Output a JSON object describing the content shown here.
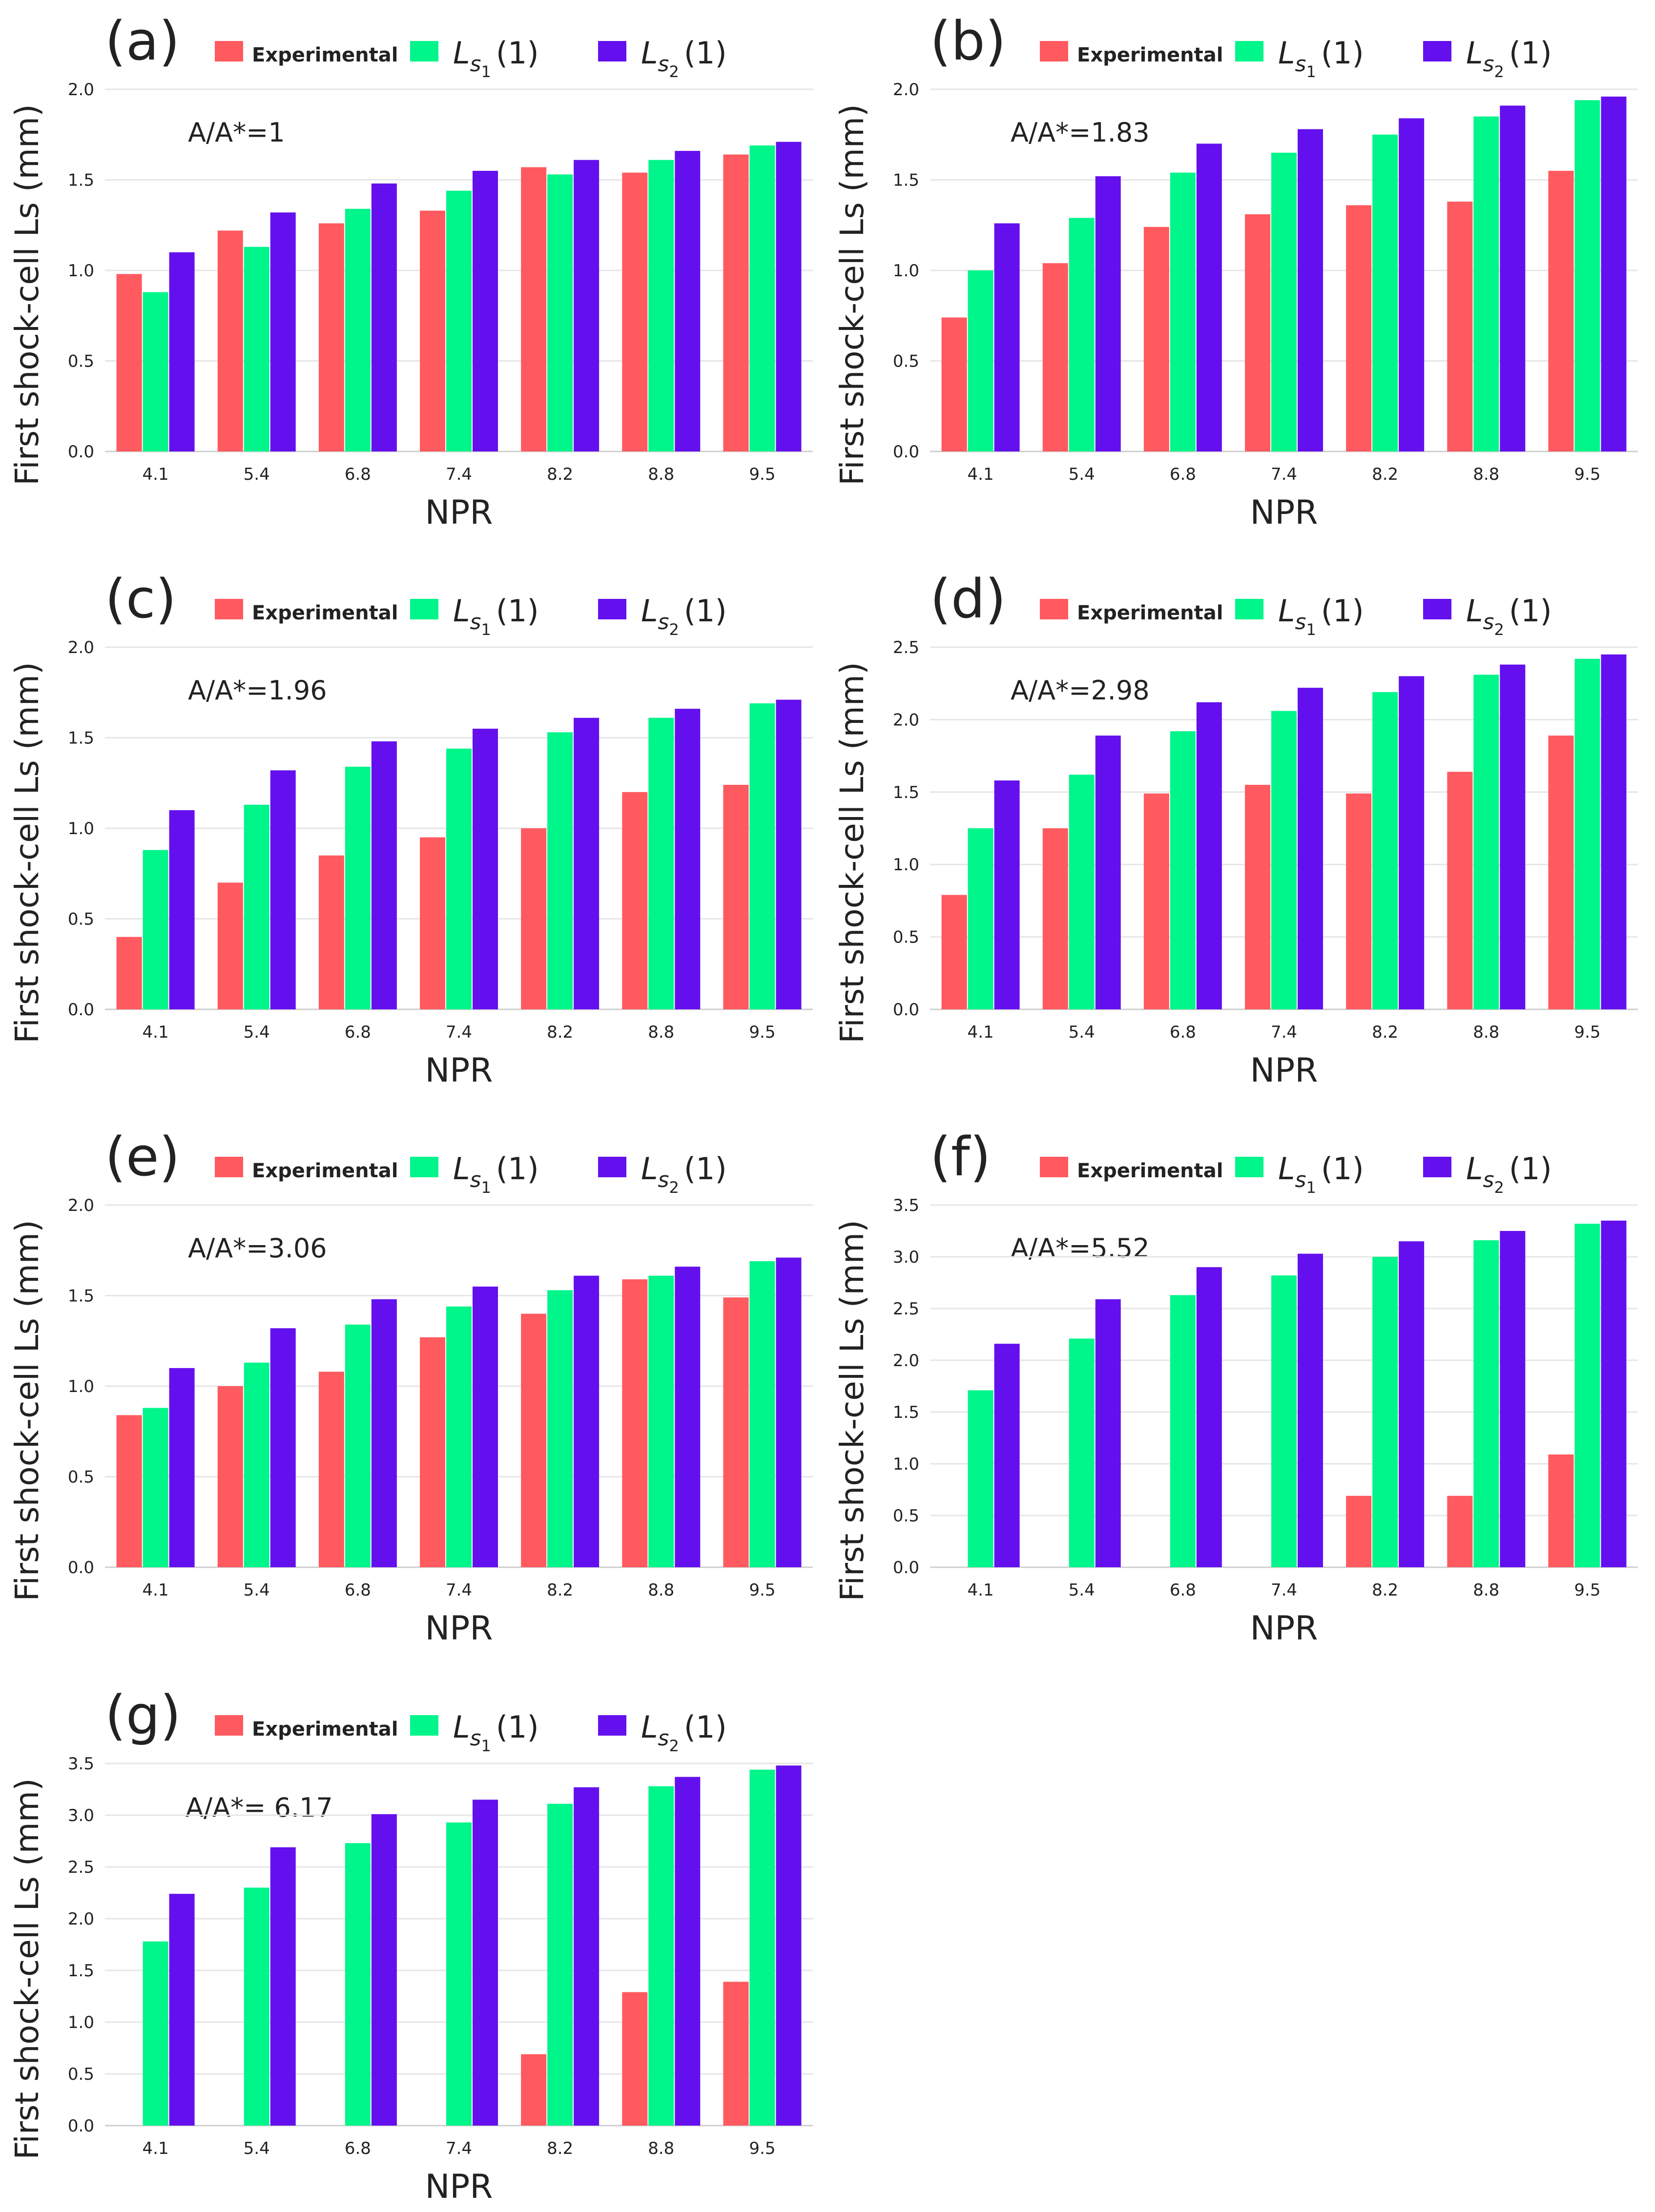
{
  "figure": {
    "colors": {
      "experimental": "#FF5A5F",
      "ls1": "#00F58A",
      "ls2": "#6410EE",
      "grid": "#E6E6E6",
      "axis": "#CFCFCF",
      "text": "#222222"
    },
    "legend": {
      "experimental": "Experimental",
      "ls1_base": "L",
      "ls1_sub": "s",
      "ls1_subsub": "1",
      "ls1_arg": "(1)",
      "ls2_base": "L",
      "ls2_sub": "s",
      "ls2_subsub": "2",
      "ls2_arg": "(1)"
    },
    "ylabel": "First shock-cell  Ls (mm)",
    "xlabel": "NPR"
  },
  "chart_data": [
    {
      "type": "bar",
      "panel": "(a)",
      "annotation": "A/A*=1",
      "categories": [
        "4.1",
        "5.4",
        "6.8",
        "7.4",
        "8.2",
        "8.8",
        "9.5"
      ],
      "series": [
        {
          "name": "Experimental",
          "values": [
            0.98,
            1.22,
            1.26,
            1.33,
            1.57,
            1.54,
            1.64
          ]
        },
        {
          "name": "Ls1(1)",
          "values": [
            0.88,
            1.13,
            1.34,
            1.44,
            1.53,
            1.61,
            1.69
          ]
        },
        {
          "name": "Ls2(1)",
          "values": [
            1.1,
            1.32,
            1.48,
            1.55,
            1.61,
            1.66,
            1.71
          ]
        }
      ],
      "ylim": [
        0,
        2.0
      ],
      "yticks": [
        "0.0",
        "0.5",
        "1.0",
        "1.5",
        "2.0"
      ],
      "xlabel": "NPR",
      "ylabel": "First shock-cell  Ls (mm)"
    },
    {
      "type": "bar",
      "panel": "(b)",
      "annotation": "A/A*=1.83",
      "categories": [
        "4.1",
        "5.4",
        "6.8",
        "7.4",
        "8.2",
        "8.8",
        "9.5"
      ],
      "series": [
        {
          "name": "Experimental",
          "values": [
            0.74,
            1.04,
            1.24,
            1.31,
            1.36,
            1.38,
            1.55
          ]
        },
        {
          "name": "Ls1(1)",
          "values": [
            1.0,
            1.29,
            1.54,
            1.65,
            1.75,
            1.85,
            1.94
          ]
        },
        {
          "name": "Ls2(1)",
          "values": [
            1.26,
            1.52,
            1.7,
            1.78,
            1.84,
            1.91,
            1.96
          ]
        }
      ],
      "ylim": [
        0,
        2.0
      ],
      "yticks": [
        "0.0",
        "0.5",
        "1.0",
        "1.5",
        "2.0"
      ],
      "xlabel": "NPR",
      "ylabel": "First shock-cell  Ls (mm)"
    },
    {
      "type": "bar",
      "panel": "(c)",
      "annotation": "A/A*=1.96",
      "categories": [
        "4.1",
        "5.4",
        "6.8",
        "7.4",
        "8.2",
        "8.8",
        "9.5"
      ],
      "series": [
        {
          "name": "Experimental",
          "values": [
            0.4,
            0.7,
            0.85,
            0.95,
            1.0,
            1.2,
            1.24
          ]
        },
        {
          "name": "Ls1(1)",
          "values": [
            0.88,
            1.13,
            1.34,
            1.44,
            1.53,
            1.61,
            1.69
          ]
        },
        {
          "name": "Ls2(1)",
          "values": [
            1.1,
            1.32,
            1.48,
            1.55,
            1.61,
            1.66,
            1.71
          ]
        }
      ],
      "ylim": [
        0,
        2.0
      ],
      "yticks": [
        "0.0",
        "0.5",
        "1.0",
        "1.5",
        "2.0"
      ],
      "xlabel": "NPR",
      "ylabel": "First shock-cell  Ls (mm)"
    },
    {
      "type": "bar",
      "panel": "(d)",
      "annotation": "A/A*=2.98",
      "categories": [
        "4.1",
        "5.4",
        "6.8",
        "7.4",
        "8.2",
        "8.8",
        "9.5"
      ],
      "series": [
        {
          "name": "Experimental",
          "values": [
            0.79,
            1.25,
            1.49,
            1.55,
            1.49,
            1.64,
            1.89
          ]
        },
        {
          "name": "Ls1(1)",
          "values": [
            1.25,
            1.62,
            1.92,
            2.06,
            2.19,
            2.31,
            2.42
          ]
        },
        {
          "name": "Ls2(1)",
          "values": [
            1.58,
            1.89,
            2.12,
            2.22,
            2.3,
            2.38,
            2.45
          ]
        }
      ],
      "ylim": [
        0,
        2.5
      ],
      "yticks": [
        "0.0",
        "0.5",
        "1.0",
        "1.5",
        "2.0",
        "2.5"
      ],
      "xlabel": "NPR",
      "ylabel": "First shock-cell  Ls (mm)"
    },
    {
      "type": "bar",
      "panel": "(e)",
      "annotation": "A/A*=3.06",
      "categories": [
        "4.1",
        "5.4",
        "6.8",
        "7.4",
        "8.2",
        "8.8",
        "9.5"
      ],
      "series": [
        {
          "name": "Experimental",
          "values": [
            0.84,
            1.0,
            1.08,
            1.27,
            1.4,
            1.59,
            1.49
          ]
        },
        {
          "name": "Ls1(1)",
          "values": [
            0.88,
            1.13,
            1.34,
            1.44,
            1.53,
            1.61,
            1.69
          ]
        },
        {
          "name": "Ls2(1)",
          "values": [
            1.1,
            1.32,
            1.48,
            1.55,
            1.61,
            1.66,
            1.71
          ]
        }
      ],
      "ylim": [
        0,
        2.0
      ],
      "yticks": [
        "0.0",
        "0.5",
        "1.0",
        "1.5",
        "2.0"
      ],
      "xlabel": "NPR",
      "ylabel": "First shock-cell  Ls (mm)"
    },
    {
      "type": "bar",
      "panel": "(f)",
      "annotation": "A/A*=5.52",
      "categories": [
        "4.1",
        "5.4",
        "6.8",
        "7.4",
        "8.2",
        "8.8",
        "9.5"
      ],
      "series": [
        {
          "name": "Experimental",
          "values": [
            0,
            0,
            0,
            0,
            0.69,
            0.69,
            1.09
          ]
        },
        {
          "name": "Ls1(1)",
          "values": [
            1.71,
            2.21,
            2.63,
            2.82,
            3.0,
            3.16,
            3.32
          ]
        },
        {
          "name": "Ls2(1)",
          "values": [
            2.16,
            2.59,
            2.9,
            3.03,
            3.15,
            3.25,
            3.35
          ]
        }
      ],
      "ylim": [
        0,
        3.5
      ],
      "yticks": [
        "0.0",
        "0.5",
        "1.0",
        "1.5",
        "2.0",
        "2.5",
        "3.0",
        "3.5"
      ],
      "xlabel": "NPR",
      "ylabel": "First shock-cell  Ls (mm)"
    },
    {
      "type": "bar",
      "panel": "(g)",
      "annotation": "A/A*= 6.17",
      "categories": [
        "4.1",
        "5.4",
        "6.8",
        "7.4",
        "8.2",
        "8.8",
        "9.5"
      ],
      "series": [
        {
          "name": "Experimental",
          "values": [
            0,
            0,
            0,
            0,
            0.69,
            1.29,
            1.39
          ]
        },
        {
          "name": "Ls1(1)",
          "values": [
            1.78,
            2.3,
            2.73,
            2.93,
            3.11,
            3.28,
            3.44
          ]
        },
        {
          "name": "Ls2(1)",
          "values": [
            2.24,
            2.69,
            3.01,
            3.15,
            3.27,
            3.37,
            3.48
          ]
        }
      ],
      "ylim": [
        0,
        3.5
      ],
      "yticks": [
        "0.0",
        "0.5",
        "1.0",
        "1.5",
        "2.0",
        "2.5",
        "3.0",
        "3.5"
      ],
      "xlabel": "NPR",
      "ylabel": "First shock-cell  Ls (mm)"
    }
  ]
}
